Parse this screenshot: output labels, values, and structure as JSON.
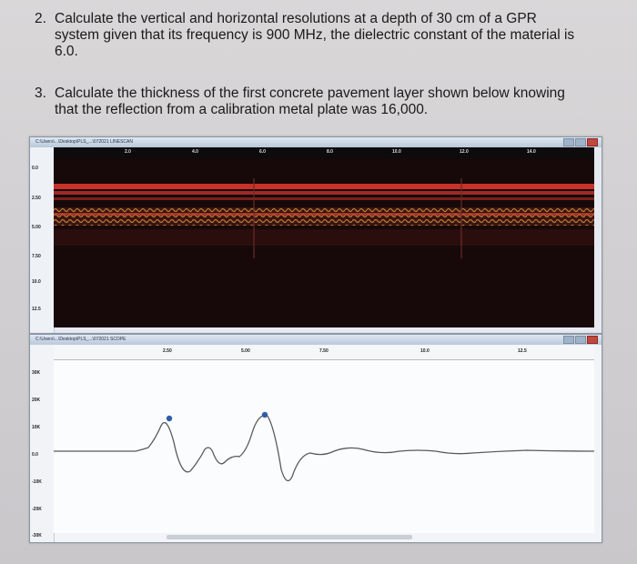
{
  "questions": [
    {
      "number": "2.",
      "lines": [
        "Calculate the vertical and horizontal resolutions at a depth of 30 cm of a GPR",
        "system given that its frequency is 900 MHz, the dielectric constant of the material is",
        "6.0."
      ]
    },
    {
      "number": "3.",
      "lines": [
        "Calculate the thickness of the first concrete pavement layer shown below knowing",
        "that the reflection from a calibration metal plate was 16,000."
      ]
    }
  ],
  "bscan": {
    "title": "C:\\Users\\...\\Desktop\\PLS_...\\072021  LINESCAN",
    "x_ticks": [
      "2.0",
      "4.0",
      "6.0",
      "8.0",
      "10.0",
      "12.0",
      "14.0"
    ],
    "y_ticks": [
      "0.0",
      "2.50",
      "5.00",
      "7.50",
      "10.0",
      "12.5"
    ]
  },
  "ascan": {
    "title": "C:\\Users\\...\\Desktop\\PLS_...\\072021  SCOPE",
    "x_ticks": [
      "2.50",
      "5.00",
      "7.50",
      "10.0",
      "12.5"
    ],
    "y_ticks": [
      "30K",
      "20K",
      "10K",
      "0.0",
      "-10K",
      "-20K",
      "-30K"
    ],
    "trace_color": "#5a5a5a",
    "marker_color": "#2f5ea8"
  }
}
